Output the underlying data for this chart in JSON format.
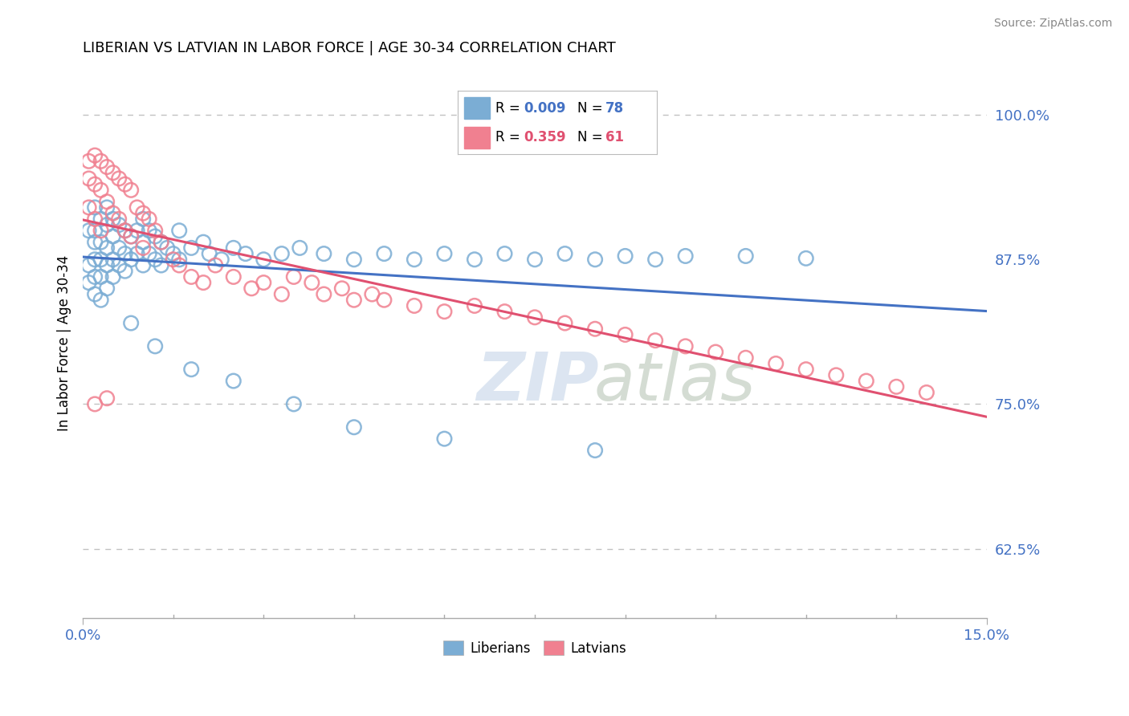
{
  "title": "LIBERIAN VS LATVIAN IN LABOR FORCE | AGE 30-34 CORRELATION CHART",
  "source": "Source: ZipAtlas.com",
  "ylabel_ticks": [
    0.625,
    0.75,
    0.875,
    1.0
  ],
  "ylabel_tick_labels": [
    "62.5%",
    "75.0%",
    "87.5%",
    "100.0%"
  ],
  "xmin": 0.0,
  "xmax": 0.15,
  "ymin": 0.565,
  "ymax": 1.04,
  "liberian_color": "#7BADD4",
  "latvian_color": "#F08090",
  "liberian_line_color": "#4472C4",
  "latvian_line_color": "#E05070",
  "liberian_R": 0.009,
  "liberian_N": 78,
  "latvian_R": 0.359,
  "latvian_N": 61,
  "watermark_zip": "ZIP",
  "watermark_atlas": "atlas",
  "lib_x": [
    0.001,
    0.001,
    0.001,
    0.002,
    0.002,
    0.002,
    0.002,
    0.002,
    0.002,
    0.003,
    0.003,
    0.003,
    0.003,
    0.003,
    0.004,
    0.004,
    0.004,
    0.004,
    0.004,
    0.005,
    0.005,
    0.005,
    0.005,
    0.006,
    0.006,
    0.006,
    0.007,
    0.007,
    0.007,
    0.008,
    0.008,
    0.009,
    0.009,
    0.01,
    0.01,
    0.01,
    0.011,
    0.011,
    0.012,
    0.012,
    0.013,
    0.013,
    0.014,
    0.015,
    0.016,
    0.016,
    0.018,
    0.02,
    0.021,
    0.023,
    0.025,
    0.027,
    0.03,
    0.033,
    0.036,
    0.04,
    0.045,
    0.05,
    0.055,
    0.06,
    0.065,
    0.07,
    0.075,
    0.08,
    0.085,
    0.09,
    0.095,
    0.1,
    0.11,
    0.12,
    0.008,
    0.012,
    0.018,
    0.025,
    0.035,
    0.045,
    0.06,
    0.085
  ],
  "lib_y": [
    0.9,
    0.87,
    0.855,
    0.92,
    0.9,
    0.89,
    0.875,
    0.86,
    0.845,
    0.91,
    0.89,
    0.875,
    0.86,
    0.84,
    0.92,
    0.905,
    0.885,
    0.87,
    0.85,
    0.91,
    0.895,
    0.875,
    0.86,
    0.905,
    0.885,
    0.87,
    0.9,
    0.88,
    0.865,
    0.895,
    0.875,
    0.9,
    0.88,
    0.91,
    0.89,
    0.87,
    0.9,
    0.88,
    0.895,
    0.875,
    0.89,
    0.87,
    0.885,
    0.88,
    0.9,
    0.875,
    0.885,
    0.89,
    0.88,
    0.875,
    0.885,
    0.88,
    0.875,
    0.88,
    0.885,
    0.88,
    0.875,
    0.88,
    0.875,
    0.88,
    0.875,
    0.88,
    0.875,
    0.88,
    0.875,
    0.878,
    0.875,
    0.878,
    0.878,
    0.876,
    0.82,
    0.8,
    0.78,
    0.77,
    0.75,
    0.73,
    0.72,
    0.71
  ],
  "lat_x": [
    0.001,
    0.001,
    0.001,
    0.002,
    0.002,
    0.002,
    0.003,
    0.003,
    0.003,
    0.004,
    0.004,
    0.005,
    0.005,
    0.006,
    0.006,
    0.007,
    0.007,
    0.008,
    0.008,
    0.009,
    0.01,
    0.01,
    0.011,
    0.012,
    0.013,
    0.015,
    0.016,
    0.018,
    0.02,
    0.022,
    0.025,
    0.028,
    0.03,
    0.033,
    0.035,
    0.038,
    0.04,
    0.043,
    0.045,
    0.048,
    0.05,
    0.055,
    0.06,
    0.065,
    0.07,
    0.075,
    0.08,
    0.085,
    0.09,
    0.095,
    0.1,
    0.105,
    0.11,
    0.115,
    0.12,
    0.125,
    0.13,
    0.135,
    0.14,
    0.002,
    0.004
  ],
  "lat_y": [
    0.96,
    0.945,
    0.92,
    0.965,
    0.94,
    0.91,
    0.96,
    0.935,
    0.9,
    0.955,
    0.925,
    0.95,
    0.915,
    0.945,
    0.91,
    0.94,
    0.9,
    0.935,
    0.895,
    0.92,
    0.915,
    0.885,
    0.91,
    0.9,
    0.89,
    0.875,
    0.87,
    0.86,
    0.855,
    0.87,
    0.86,
    0.85,
    0.855,
    0.845,
    0.86,
    0.855,
    0.845,
    0.85,
    0.84,
    0.845,
    0.84,
    0.835,
    0.83,
    0.835,
    0.83,
    0.825,
    0.82,
    0.815,
    0.81,
    0.805,
    0.8,
    0.795,
    0.79,
    0.785,
    0.78,
    0.775,
    0.77,
    0.765,
    0.76,
    0.75,
    0.755
  ]
}
